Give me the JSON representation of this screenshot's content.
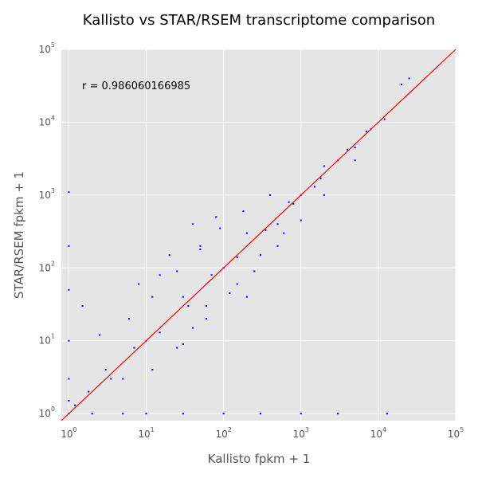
{
  "chart_data": {
    "type": "scatter",
    "title": "Kallisto vs STAR/RSEM transcriptome comparison",
    "xlabel": "Kallisto fpkm + 1",
    "ylabel": "STAR/RSEM fpkm + 1",
    "xscale": "log",
    "yscale": "log",
    "xlim": [
      0.8,
      100000
    ],
    "ylim": [
      0.8,
      100000
    ],
    "grid": true,
    "x_ticks": [
      {
        "base": "10",
        "exp": "0"
      },
      {
        "base": "10",
        "exp": "1"
      },
      {
        "base": "10",
        "exp": "2"
      },
      {
        "base": "10",
        "exp": "3"
      },
      {
        "base": "10",
        "exp": "4"
      },
      {
        "base": "10",
        "exp": "5"
      }
    ],
    "y_ticks": [
      {
        "base": "10",
        "exp": "0"
      },
      {
        "base": "10",
        "exp": "1"
      },
      {
        "base": "10",
        "exp": "2"
      },
      {
        "base": "10",
        "exp": "3"
      },
      {
        "base": "10",
        "exp": "4"
      },
      {
        "base": "10",
        "exp": "5"
      }
    ],
    "annotation": "r = 0.986060166985",
    "reference_line": {
      "x": [
        0.8,
        100000
      ],
      "y": [
        0.8,
        100000
      ],
      "color": "#ff0000"
    },
    "series": [
      {
        "marker_color": "#0000ff",
        "points": [
          [
            1.5,
            30
          ],
          [
            2.5,
            12
          ],
          [
            3.0,
            4.0
          ],
          [
            5.0,
            3.0
          ],
          [
            6.0,
            20
          ],
          [
            8.0,
            60
          ],
          [
            10,
            10
          ],
          [
            12,
            4.0
          ],
          [
            15,
            80
          ],
          [
            20,
            150
          ],
          [
            25,
            8.0
          ],
          [
            30,
            40
          ],
          [
            40,
            15
          ],
          [
            50,
            200
          ],
          [
            60,
            30
          ],
          [
            80,
            500
          ],
          [
            100,
            100
          ],
          [
            150,
            60
          ],
          [
            200,
            300
          ],
          [
            300,
            150
          ],
          [
            400,
            1000
          ],
          [
            500,
            400
          ],
          [
            700,
            800
          ],
          [
            1000,
            1000
          ],
          [
            1500,
            1300
          ],
          [
            2000,
            2500
          ],
          [
            3000,
            3000
          ],
          [
            4000,
            4200
          ],
          [
            5000,
            4500
          ],
          [
            7000,
            7500
          ],
          [
            8000,
            8000
          ],
          [
            12000,
            11000
          ],
          [
            25000,
            40000
          ],
          [
            20000,
            33000
          ],
          [
            1.2,
            1.3
          ],
          [
            1.8,
            2.0
          ],
          [
            3.5,
            3.0
          ],
          [
            7.0,
            8.0
          ],
          [
            15,
            13
          ],
          [
            35,
            30
          ],
          [
            70,
            80
          ],
          [
            150,
            140
          ],
          [
            350,
            330
          ],
          [
            800,
            760
          ],
          [
            1800,
            1700
          ],
          [
            30,
            9.0
          ],
          [
            60,
            20
          ],
          [
            120,
            45
          ],
          [
            250,
            90
          ],
          [
            500,
            200
          ],
          [
            1000,
            450
          ],
          [
            12,
            40
          ],
          [
            25,
            90
          ],
          [
            50,
            180
          ],
          [
            90,
            350
          ],
          [
            180,
            600
          ],
          [
            40,
            400
          ],
          [
            200,
            40
          ],
          [
            600,
            300
          ],
          [
            2000,
            1000
          ],
          [
            5000,
            3000
          ],
          [
            1.0,
            1.0
          ],
          [
            1.0,
            1.5
          ],
          [
            1.0,
            3.0
          ],
          [
            1.0,
            10
          ],
          [
            1.0,
            50
          ],
          [
            1.0,
            200
          ],
          [
            1.0,
            1100
          ],
          [
            2.0,
            1.0
          ],
          [
            5.0,
            1.0
          ],
          [
            10,
            1.0
          ],
          [
            30,
            1.0
          ],
          [
            100,
            1.0
          ],
          [
            300,
            1.0
          ],
          [
            1000,
            1.0
          ],
          [
            3000,
            1.0
          ],
          [
            13000,
            1.0
          ]
        ]
      }
    ]
  }
}
